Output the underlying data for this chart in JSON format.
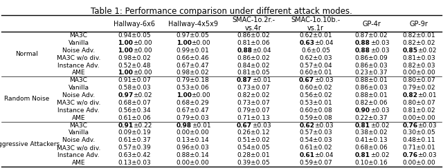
{
  "title": "Table 1: Performance comparison under different attack modes.",
  "col_headers": [
    "",
    "Hallway-6x6",
    "Hallway-4x5x9",
    "SMAC-1o.2r.-\nvs.4r",
    "SMAC-1o.10b.-\nvs.1r",
    "GP-4r",
    "GP-9r"
  ],
  "row_groups": [
    {
      "group_label": "Normal",
      "rows": [
        [
          "MA3C",
          "0.94±0.05",
          "0.97±0.05",
          "0.86±0.02",
          "0.62±0.01",
          "0.87±0.02",
          "0.82±0.01"
        ],
        [
          "Vanilla",
          "1.00±0.00",
          "1.00±0.00",
          "0.81±0.06",
          "0.63±0.04",
          "0.88±0.03",
          "0.82±0.02"
        ],
        [
          "Noise Adv.",
          "1.00±0.00",
          "0.99±0.01",
          "0.88±0.04",
          "0.6±0.05",
          "0.88±0.03",
          "0.85±0.02"
        ],
        [
          "MA3C w/o div.",
          "0.98±0.02",
          "0.66±0.46",
          "0.86±0.02",
          "0.62±0.03",
          "0.86±0.09",
          "0.81±0.03"
        ],
        [
          "Instance Adv.",
          "0.52±0.48",
          "0.67±0.47",
          "0.84±0.02",
          "0.57±0.04",
          "0.86±0.03",
          "0.82±0.03"
        ],
        [
          "AME",
          "1.00±0.00",
          "0.98±0.02",
          "0.81±0.05",
          "0.60±0.01",
          "0.23±0.37",
          "0.00±0.00"
        ]
      ],
      "bold": [
        [
          false,
          false,
          false,
          false,
          false,
          false
        ],
        [
          true,
          true,
          false,
          true,
          true,
          false
        ],
        [
          true,
          false,
          true,
          false,
          true,
          true
        ],
        [
          false,
          false,
          false,
          false,
          false,
          false
        ],
        [
          false,
          false,
          false,
          false,
          false,
          false
        ],
        [
          true,
          false,
          false,
          false,
          false,
          false
        ]
      ]
    },
    {
      "group_label": "Random Noise",
      "rows": [
        [
          "MA3C",
          "0.91±0.07",
          "0.79±0.18",
          "0.87±0.01",
          "0.67±0.03",
          "0.88±0.01",
          "0.80±0.07"
        ],
        [
          "Vanilla",
          "0.58±0.03",
          "0.53±0.06",
          "0.73±0.07",
          "0.60±0.02",
          "0.86±0.03",
          "0.79±0.02"
        ],
        [
          "Noise Adv.",
          "0.97±0.02",
          "1.00±0.00",
          "0.82±0.02",
          "0.56±0.02",
          "0.88±0.01",
          "0.82±0.01"
        ],
        [
          "MA3C w/o div.",
          "0.68±0.07",
          "0.68±0.29",
          "0.73±0.07",
          "0.53±0.01",
          "0.82±0.06",
          "0.80±0.07"
        ],
        [
          "Instance Adv.",
          "0.56±0.34",
          "0.67±0.47",
          "0.79±0.07",
          "0.60±0.08",
          "0.90±0.03",
          "0.81±0.02"
        ],
        [
          "AME",
          "0.61±0.06",
          "0.79±0.03",
          "0.71±0.13",
          "0.59±0.08",
          "0.22±0.37",
          "0.00±0.00"
        ]
      ],
      "bold": [
        [
          false,
          false,
          true,
          true,
          false,
          false
        ],
        [
          false,
          false,
          false,
          false,
          false,
          false
        ],
        [
          true,
          true,
          false,
          false,
          false,
          true
        ],
        [
          false,
          false,
          false,
          false,
          false,
          false
        ],
        [
          false,
          false,
          false,
          false,
          true,
          false
        ],
        [
          false,
          false,
          false,
          false,
          false,
          false
        ]
      ]
    },
    {
      "group_label": "Aggressive Attackers",
      "rows": [
        [
          "MA3C",
          "0.91±0.22",
          "0.98±0.01",
          "0.67±0.03",
          "0.62±0.03",
          "0.81±0.02",
          "0.76±0.03"
        ],
        [
          "Vanilla",
          "0.09±0.19",
          "0.00±0.00",
          "0.26±0.12",
          "0.57±0.03",
          "0.38±0.02",
          "0.30±0.05"
        ],
        [
          "Noise Adv.",
          "0.61±0.37",
          "0.13±0.14",
          "0.51±0.02",
          "0.54±0.03",
          "0.41±0.13",
          "0.48±0.11"
        ],
        [
          "MA3C w/o div.",
          "0.57±0.39",
          "0.96±0.03",
          "0.54±0.05",
          "0.61±0.02",
          "0.68±0.06",
          "0.71±0.01"
        ],
        [
          "Instance Adv.",
          "0.63±0.42",
          "0.88±0.14",
          "0.28±0.01",
          "0.61±0.04",
          "0.81±0.02",
          "0.76±0.03"
        ],
        [
          "AME",
          "0.13±0.03",
          "0.00±0.00",
          "0.39±0.05",
          "0.59±0.07",
          "0.10±0.16",
          "0.00±0.00"
        ]
      ],
      "bold": [
        [
          true,
          true,
          true,
          true,
          true,
          true
        ],
        [
          false,
          false,
          false,
          false,
          false,
          false
        ],
        [
          false,
          false,
          false,
          false,
          false,
          false
        ],
        [
          false,
          false,
          false,
          false,
          false,
          false
        ],
        [
          false,
          false,
          false,
          true,
          true,
          true
        ],
        [
          false,
          false,
          false,
          false,
          false,
          false
        ]
      ]
    }
  ]
}
